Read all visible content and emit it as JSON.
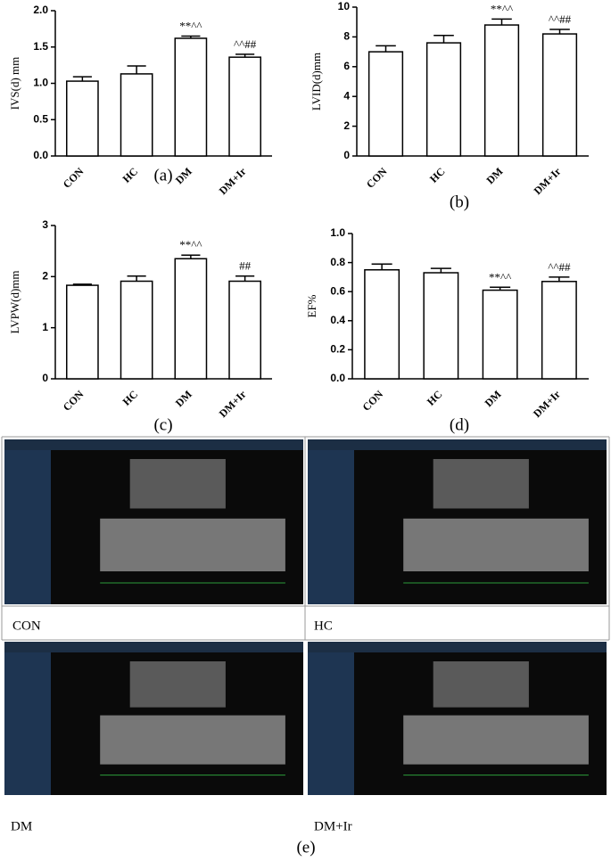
{
  "chart_data": [
    {
      "type": "bar",
      "label": "(a)",
      "y_label": "IVS(d) mm",
      "categories": [
        "CON",
        "HC",
        "DM",
        "DM+Ir"
      ],
      "values": [
        1.03,
        1.13,
        1.62,
        1.36
      ],
      "errors": [
        0.06,
        0.11,
        0.03,
        0.04
      ],
      "annotations": [
        null,
        null,
        "**^^",
        "^^##"
      ],
      "color": "#ffffff",
      "ylim": [
        0,
        2
      ],
      "yticks": [
        {
          "value": 0,
          "label": "0.0"
        },
        0.5,
        {
          "value": 1,
          "label": "1.0"
        },
        1.5,
        {
          "value": 2,
          "label": "2.0"
        }
      ]
    },
    {
      "type": "bar",
      "label": "(b)",
      "y_label": "LVID(d)mm",
      "categories": [
        "CON",
        "HC",
        "DM",
        "DM+Ir"
      ],
      "values": [
        7.0,
        7.6,
        8.8,
        8.2
      ],
      "errors": [
        0.4,
        0.5,
        0.4,
        0.3
      ],
      "annotations": [
        null,
        null,
        "**^^",
        "^^##"
      ],
      "color": "#ffffff",
      "ylim": [
        0,
        10
      ],
      "yticks": [
        0,
        2,
        4,
        6,
        8,
        10
      ]
    },
    {
      "type": "bar",
      "label": "(c)",
      "y_label": "LVPW(d)mm",
      "categories": [
        "CON",
        "HC",
        "DM",
        "DM+Ir"
      ],
      "values": [
        1.83,
        1.91,
        2.35,
        1.91
      ],
      "errors": [
        0.02,
        0.1,
        0.07,
        0.1
      ],
      "annotations": [
        null,
        null,
        "**^^",
        "##"
      ],
      "color": "#ffffff",
      "ylim": [
        0,
        3
      ],
      "yticks": [
        0,
        1,
        2,
        3
      ]
    },
    {
      "type": "bar",
      "label": "(d)",
      "y_label": "EF%",
      "categories": [
        "CON",
        "HC",
        "DM",
        "DM+Ir"
      ],
      "values": [
        0.75,
        0.73,
        0.61,
        0.67
      ],
      "errors": [
        0.04,
        0.03,
        0.02,
        0.03
      ],
      "annotations": [
        null,
        null,
        "**^^",
        "^^##"
      ],
      "color": "#ffffff",
      "ylim": [
        0,
        1
      ],
      "yticks": [
        {
          "value": 0,
          "label": "0.0"
        },
        0.2,
        0.4,
        0.6,
        0.8,
        {
          "value": 1,
          "label": "1.0"
        }
      ]
    }
  ],
  "panels": [
    {
      "caption": "CON"
    },
    {
      "caption": "HC"
    },
    {
      "caption": "DM"
    },
    {
      "caption": "DM+Ir"
    }
  ],
  "figure_label": "(e)"
}
